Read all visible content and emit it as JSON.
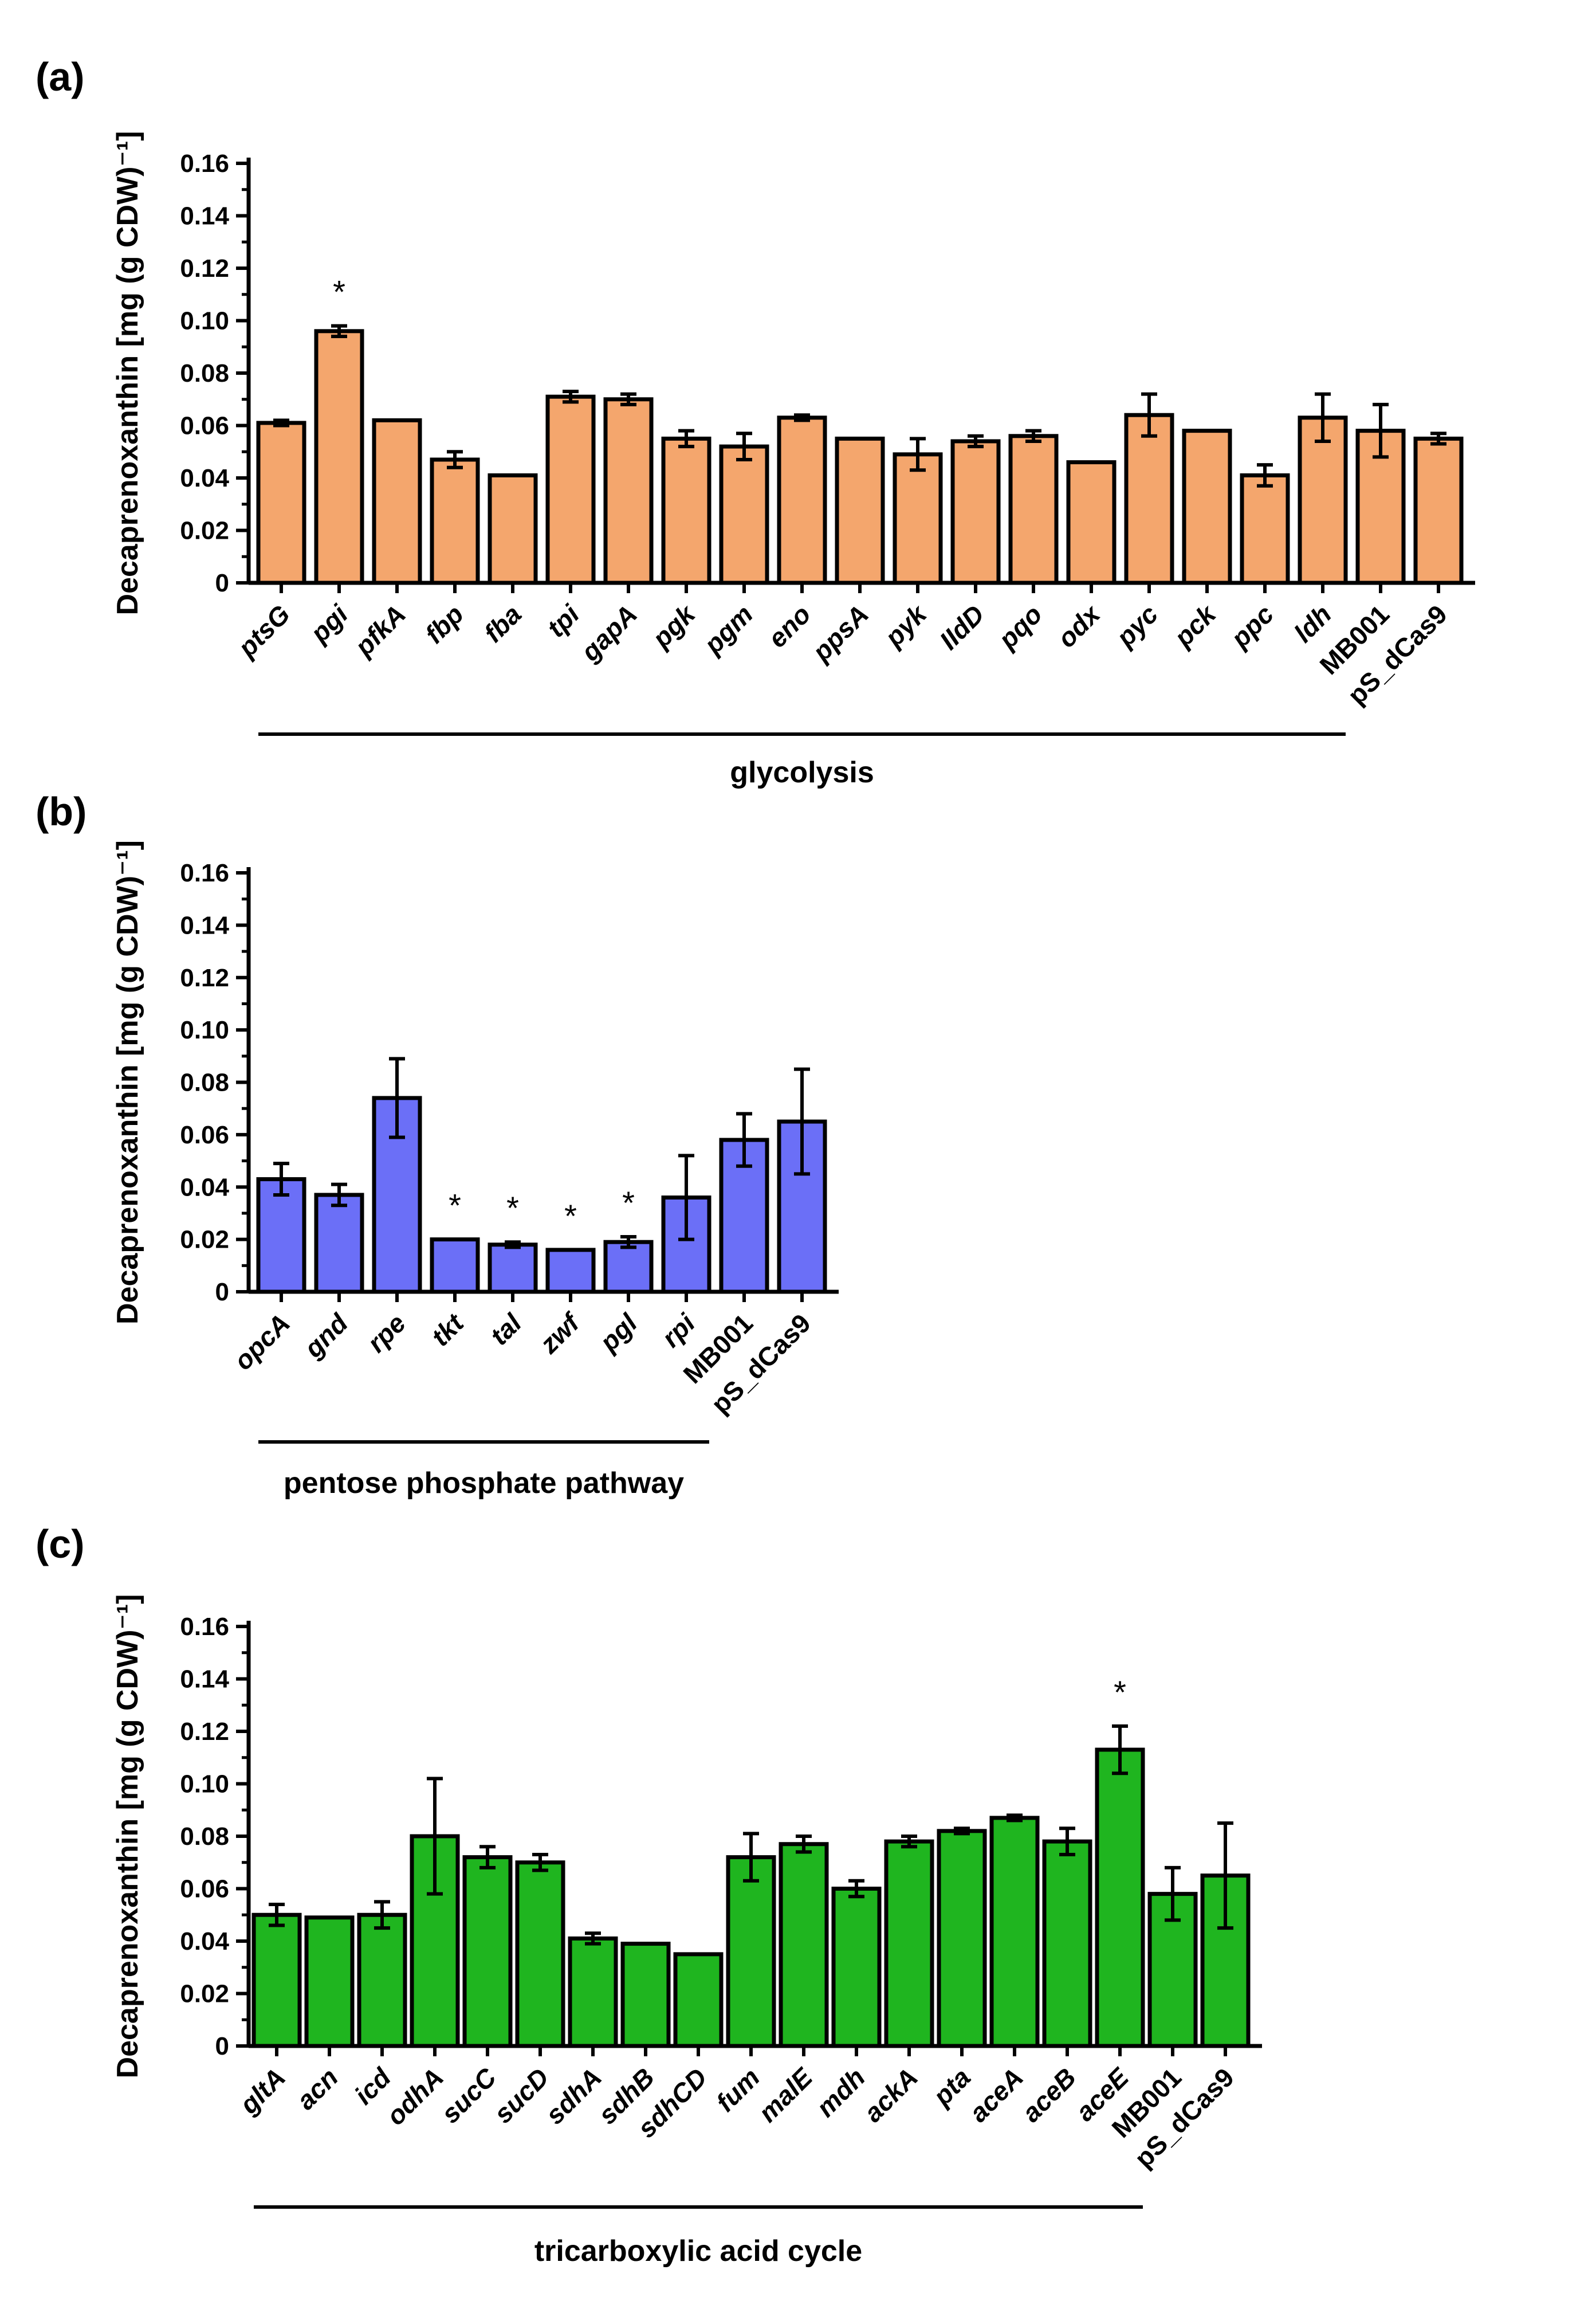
{
  "chart_data": [
    {
      "panel": "(a)",
      "type": "bar",
      "ylabel": "Decaprenoxanthin [mg (g CDW)⁻¹]",
      "ylim": [
        0,
        0.16
      ],
      "yticks": [
        "0",
        "0.02",
        "0.04",
        "0.06",
        "0.08",
        "0.10",
        "0.12",
        "0.14",
        "0.16"
      ],
      "color": "#f4a66d",
      "categories": [
        "ptsG",
        "pgi",
        "pfkA",
        "fbp",
        "fba",
        "tpi",
        "gapA",
        "pgk",
        "pgm",
        "eno",
        "ppsA",
        "pyk",
        "IIdD",
        "pqo",
        "odx",
        "pyc",
        "pck",
        "ppc",
        "ldh",
        "MB001",
        "pS_dCas9"
      ],
      "italic": [
        true,
        true,
        true,
        true,
        true,
        true,
        true,
        true,
        true,
        true,
        true,
        true,
        true,
        true,
        true,
        true,
        true,
        true,
        true,
        false,
        false
      ],
      "values": [
        0.061,
        0.096,
        0.062,
        0.047,
        0.041,
        0.071,
        0.07,
        0.055,
        0.052,
        0.063,
        0.055,
        0.049,
        0.054,
        0.056,
        0.046,
        0.064,
        0.058,
        0.041,
        0.063,
        0.058,
        0.055
      ],
      "errors": [
        0.001,
        0.002,
        0.0,
        0.003,
        0.0,
        0.002,
        0.002,
        0.003,
        0.005,
        0.001,
        0.0,
        0.006,
        0.002,
        0.002,
        0.0,
        0.008,
        0.0,
        0.004,
        0.009,
        0.01,
        0.002
      ],
      "significant": [
        false,
        true,
        false,
        false,
        false,
        false,
        false,
        false,
        false,
        false,
        false,
        false,
        false,
        false,
        false,
        false,
        false,
        false,
        false,
        false,
        false
      ],
      "significance_marker": "*",
      "group_label": "glycolysis",
      "group_span": [
        "ptsG",
        "ldh"
      ]
    },
    {
      "panel": "(b)",
      "type": "bar",
      "ylabel": "Decaprenoxanthin [mg (g CDW)⁻¹]",
      "ylim": [
        0,
        0.16
      ],
      "yticks": [
        "0",
        "0.02",
        "0.04",
        "0.06",
        "0.08",
        "0.10",
        "0.12",
        "0.14",
        "0.16"
      ],
      "color": "#6b6ff7",
      "categories": [
        "opcA",
        "gnd",
        "rpe",
        "tkt",
        "tal",
        "zwf",
        "pgl",
        "rpi",
        "MB001",
        "pS_dCas9"
      ],
      "italic": [
        true,
        true,
        true,
        true,
        true,
        true,
        true,
        true,
        false,
        false
      ],
      "values": [
        0.043,
        0.037,
        0.074,
        0.02,
        0.018,
        0.016,
        0.019,
        0.036,
        0.058,
        0.065
      ],
      "errors": [
        0.006,
        0.004,
        0.015,
        0.0,
        0.001,
        0.0,
        0.002,
        0.016,
        0.01,
        0.02
      ],
      "significant": [
        false,
        false,
        false,
        true,
        true,
        true,
        true,
        false,
        false,
        false
      ],
      "significance_marker": "*",
      "group_label": "pentose phosphate pathway",
      "group_span": [
        "opcA",
        "rpi"
      ]
    },
    {
      "panel": "(c)",
      "type": "bar",
      "ylabel": "Decaprenoxanthin [mg (g CDW)⁻¹]",
      "ylim": [
        0,
        0.16
      ],
      "yticks": [
        "0",
        "0.02",
        "0.04",
        "0.06",
        "0.08",
        "0.10",
        "0.12",
        "0.14",
        "0.16"
      ],
      "color": "#1fb51f",
      "categories": [
        "gltA",
        "acn",
        "icd",
        "odhA",
        "sucC",
        "sucD",
        "sdhA",
        "sdhB",
        "sdhCD",
        "fum",
        "malE",
        "mdh",
        "ackA",
        "pta",
        "aceA",
        "aceB",
        "aceE",
        "MB001",
        "pS_dCas9"
      ],
      "italic": [
        true,
        true,
        true,
        true,
        true,
        true,
        true,
        true,
        true,
        true,
        true,
        true,
        true,
        true,
        true,
        true,
        true,
        false,
        false
      ],
      "values": [
        0.05,
        0.049,
        0.05,
        0.08,
        0.072,
        0.07,
        0.041,
        0.039,
        0.035,
        0.072,
        0.077,
        0.06,
        0.078,
        0.082,
        0.087,
        0.078,
        0.113,
        0.058,
        0.065
      ],
      "errors": [
        0.004,
        0.0,
        0.005,
        0.022,
        0.004,
        0.003,
        0.002,
        0.0,
        0.0,
        0.009,
        0.003,
        0.003,
        0.002,
        0.001,
        0.001,
        0.005,
        0.009,
        0.01,
        0.02
      ],
      "significant": [
        false,
        false,
        false,
        false,
        false,
        false,
        false,
        false,
        false,
        false,
        false,
        false,
        false,
        false,
        false,
        false,
        true,
        false,
        false
      ],
      "significance_marker": "*",
      "group_label": "tricarboxylic acid cycle",
      "group_span": [
        "gltA",
        "aceE"
      ]
    }
  ]
}
